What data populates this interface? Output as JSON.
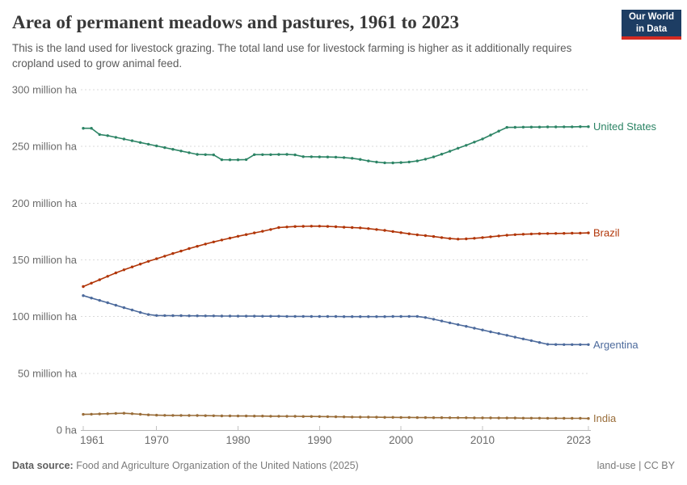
{
  "header": {
    "title": "Area of permanent meadows and pastures, 1961 to 2023",
    "subtitle": "This is the land used for livestock grazing. The total land use for livestock farming is higher as it additionally requires cropland used to grow animal feed.",
    "logo": {
      "line1": "Our World",
      "line2": "in Data",
      "bg_color": "#1d3d63",
      "bar_color": "#d42b21"
    }
  },
  "chart_data": {
    "type": "line",
    "title": "Area of permanent meadows and pastures, 1961 to 2023",
    "unit": "million ha",
    "xlim": [
      1961,
      2023
    ],
    "ylim": [
      0,
      300
    ],
    "grid": "horizontal-dashed",
    "legend_position": "end-of-line-labels",
    "x_ticks": [
      1961,
      1970,
      1980,
      1990,
      2000,
      2010,
      2023
    ],
    "y_ticks": [
      {
        "value": 300,
        "label": "300 million ha"
      },
      {
        "value": 250,
        "label": "250 million ha"
      },
      {
        "value": 200,
        "label": "200 million ha"
      },
      {
        "value": 150,
        "label": "150 million ha"
      },
      {
        "value": 100,
        "label": "100 million ha"
      },
      {
        "value": 50,
        "label": "50 million ha"
      },
      {
        "value": 0,
        "label": "0 ha"
      }
    ],
    "x": [
      1961,
      1962,
      1963,
      1964,
      1965,
      1966,
      1967,
      1968,
      1969,
      1970,
      1971,
      1972,
      1973,
      1974,
      1975,
      1976,
      1977,
      1978,
      1979,
      1980,
      1981,
      1982,
      1983,
      1984,
      1985,
      1986,
      1987,
      1988,
      1989,
      1990,
      1991,
      1992,
      1993,
      1994,
      1995,
      1996,
      1997,
      1998,
      1999,
      2000,
      2001,
      2002,
      2003,
      2004,
      2005,
      2006,
      2007,
      2008,
      2009,
      2010,
      2011,
      2012,
      2013,
      2014,
      2015,
      2016,
      2017,
      2018,
      2019,
      2020,
      2021,
      2022,
      2023
    ],
    "series": [
      {
        "name": "United States",
        "color": "#2C8465",
        "values": [
          266,
          266,
          260.5,
          259.5,
          258,
          256.5,
          255,
          253.5,
          252,
          250.5,
          249,
          247.5,
          246,
          244.5,
          243,
          242.8,
          242.6,
          238.3,
          238.2,
          238.2,
          238.4,
          242.8,
          242.8,
          242.8,
          242.9,
          243,
          242.6,
          241,
          240.9,
          240.8,
          240.7,
          240.6,
          240.2,
          239.6,
          238.6,
          237.2,
          236.2,
          235.6,
          235.5,
          235.8,
          236.3,
          237.2,
          238.8,
          240.8,
          243.2,
          245.8,
          248.4,
          251,
          253.8,
          256.6,
          260,
          263.5,
          266.8,
          266.9,
          267,
          267.1,
          267.1,
          267.2,
          267.2,
          267.3,
          267.3,
          267.4,
          267.4
        ]
      },
      {
        "name": "Brazil",
        "color": "#B13507",
        "values": [
          126.5,
          129.5,
          132.5,
          135.5,
          138.5,
          141.2,
          143.8,
          146.3,
          148.7,
          151,
          153.3,
          155.6,
          157.8,
          160,
          162,
          164,
          165.8,
          167.5,
          169.2,
          170.8,
          172.3,
          173.8,
          175.2,
          176.8,
          178.5,
          179,
          179.4,
          179.6,
          179.7,
          179.7,
          179.5,
          179.2,
          178.8,
          178.5,
          178.2,
          177.6,
          176.8,
          176,
          175,
          174,
          173,
          172.1,
          171.4,
          170.6,
          169.7,
          168.8,
          168.3,
          168.5,
          169,
          169.7,
          170.4,
          171.1,
          171.7,
          172.2,
          172.6,
          172.9,
          173.1,
          173.2,
          173.3,
          173.4,
          173.5,
          173.6,
          173.8
        ]
      },
      {
        "name": "Argentina",
        "color": "#4C6A9C",
        "values": [
          118.5,
          116.4,
          114.3,
          112.2,
          110,
          107.9,
          105.8,
          103.7,
          101.8,
          101,
          100.9,
          100.8,
          100.8,
          100.7,
          100.7,
          100.6,
          100.6,
          100.5,
          100.5,
          100.4,
          100.4,
          100.4,
          100.3,
          100.3,
          100.3,
          100.2,
          100.2,
          100.2,
          100.1,
          100.1,
          100.1,
          100.1,
          100,
          100,
          100,
          100,
          100,
          100,
          100.1,
          100.1,
          100.2,
          100.2,
          99.2,
          97.7,
          96.1,
          94.5,
          92.9,
          91.4,
          89.8,
          88.2,
          86.6,
          85.1,
          83.5,
          81.9,
          80.3,
          78.8,
          77.2,
          75.6,
          75.4,
          75.3,
          75.3,
          75.3,
          75.3
        ]
      },
      {
        "name": "India",
        "color": "#996D39",
        "values": [
          13.8,
          14,
          14.2,
          14.4,
          14.7,
          14.8,
          14.4,
          13.9,
          13.4,
          13.1,
          13,
          12.9,
          12.9,
          12.8,
          12.8,
          12.7,
          12.6,
          12.5,
          12.5,
          12.4,
          12.4,
          12.3,
          12.3,
          12.2,
          12.2,
          12.1,
          12.1,
          12,
          12,
          11.9,
          11.8,
          11.7,
          11.6,
          11.5,
          11.4,
          11.4,
          11.3,
          11.2,
          11.2,
          11.1,
          11.1,
          11,
          11,
          10.9,
          10.9,
          10.8,
          10.8,
          10.8,
          10.7,
          10.7,
          10.7,
          10.6,
          10.6,
          10.6,
          10.5,
          10.5,
          10.5,
          10.4,
          10.4,
          10.3,
          10.3,
          10.3,
          10.2
        ]
      }
    ]
  },
  "footer": {
    "source_label": "Data source:",
    "source_text": " Food and Agriculture Organization of the United Nations (2025)",
    "right_text": "land-use | CC BY"
  }
}
